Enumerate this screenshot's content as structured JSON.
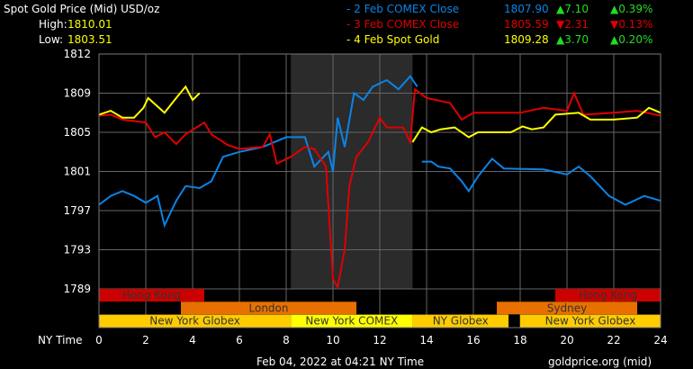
{
  "header": {
    "title": "Spot Gold Price (Mid) USD/oz",
    "high_label": "High:",
    "high": "1810.01",
    "low_label": "Low:",
    "low": "1803.51"
  },
  "legend": [
    {
      "label": "- 2 Feb COMEX Close",
      "price": "1807.90",
      "change": "▲7.10",
      "pct": "▲0.39%",
      "color": "#0a84e8",
      "chg_color": "#22dd22"
    },
    {
      "label": "- 3 Feb COMEX Close",
      "price": "1805.59",
      "change": "▼2.31",
      "pct": "▼0.13%",
      "color": "#e00000",
      "chg_color": "#e00000"
    },
    {
      "label": "- 4 Feb Spot Gold",
      "price": "1809.28",
      "change": "▲3.70",
      "pct": "▲0.20%",
      "color": "#ffff00",
      "chg_color": "#22dd22"
    }
  ],
  "footer": {
    "timestamp": "Feb 04, 2022 at 04:21 NY Time",
    "source": "goldprice.org (mid)"
  },
  "chart_data": {
    "type": "line",
    "xlabel": "NY Time",
    "xlim": [
      0,
      24
    ],
    "xticks": [
      "0",
      "2",
      "4",
      "6",
      "8",
      "10",
      "12",
      "14",
      "16",
      "18",
      "20",
      "22",
      "24"
    ],
    "yticks": [
      "1812",
      "1809",
      "1805",
      "1801",
      "1797",
      "1793",
      "1789"
    ],
    "ylim": [
      1789,
      1812
    ],
    "grid": true,
    "highlight_hours": [
      8.2,
      13.4
    ],
    "sessions": [
      {
        "name": "Hong Kong",
        "start": 0,
        "end": 4.5,
        "row": 0,
        "color": "#cc0000"
      },
      {
        "name": "Hong Kong",
        "start": 19.5,
        "end": 24,
        "row": 0,
        "color": "#cc0000"
      },
      {
        "name": "London",
        "start": 3.5,
        "end": 11,
        "row": 1,
        "color": "#e87000"
      },
      {
        "name": "Sydney",
        "start": 17,
        "end": 23,
        "row": 1,
        "color": "#e87000"
      },
      {
        "name": "New York Globex",
        "start": 0,
        "end": 8.2,
        "row": 2,
        "color": "#ffcc00"
      },
      {
        "name": "New York COMEX",
        "start": 8.2,
        "end": 13.4,
        "row": 2,
        "color": "#ffff00"
      },
      {
        "name": "NY Globex",
        "start": 13.4,
        "end": 17.5,
        "row": 2,
        "color": "#ffcc00"
      },
      {
        "name": "New York Globex",
        "start": 18,
        "end": 24,
        "row": 2,
        "color": "#ffcc00"
      }
    ],
    "series": [
      {
        "color": "#0a84e8",
        "segments": [
          [
            [
              0,
              1797.6
            ],
            [
              0.5,
              1798.5
            ],
            [
              1,
              1799
            ],
            [
              1.5,
              1798.5
            ],
            [
              2,
              1797.8
            ],
            [
              2.5,
              1798.5
            ],
            [
              2.8,
              1795.5
            ],
            [
              3.3,
              1798
            ],
            [
              3.7,
              1799.5
            ],
            [
              4.3,
              1799.3
            ],
            [
              4.8,
              1800
            ],
            [
              5.3,
              1802.5
            ],
            [
              6,
              1803
            ],
            [
              7,
              1803.5
            ],
            [
              8,
              1804.5
            ],
            [
              8.8,
              1804.5
            ],
            [
              9.2,
              1801.5
            ],
            [
              9.8,
              1803
            ],
            [
              10,
              1801
            ],
            [
              10.2,
              1806.5
            ],
            [
              10.5,
              1803.5
            ],
            [
              10.9,
              1809
            ],
            [
              11.3,
              1808.3
            ],
            [
              11.7,
              1809.5
            ],
            [
              12.3,
              1810
            ],
            [
              12.8,
              1809.3
            ],
            [
              13.3,
              1810.3
            ],
            [
              13.6,
              1809.5
            ]
          ],
          [
            [
              13.8,
              1802
            ],
            [
              14.2,
              1802
            ],
            [
              14.5,
              1801.5
            ],
            [
              15,
              1801.3
            ],
            [
              15.5,
              1800
            ],
            [
              15.8,
              1799
            ],
            [
              16.2,
              1800.5
            ],
            [
              16.8,
              1802.3
            ],
            [
              17.3,
              1801.3
            ],
            [
              19,
              1801.2
            ],
            [
              20,
              1800.7
            ],
            [
              20.5,
              1801.5
            ],
            [
              21,
              1800.5
            ],
            [
              21.8,
              1798.5
            ],
            [
              22.5,
              1797.6
            ],
            [
              23.3,
              1798.5
            ],
            [
              24,
              1798
            ]
          ]
        ]
      },
      {
        "color": "#e00000",
        "segments": [
          [
            [
              0,
              1806.7
            ],
            [
              0.5,
              1806.8
            ],
            [
              1,
              1806.3
            ],
            [
              2,
              1806
            ],
            [
              2.4,
              1804.5
            ],
            [
              2.8,
              1805
            ],
            [
              3.3,
              1803.8
            ],
            [
              3.7,
              1804.8
            ],
            [
              4.5,
              1806
            ],
            [
              4.8,
              1804.8
            ],
            [
              5.5,
              1803.7
            ],
            [
              6,
              1803.3
            ],
            [
              7,
              1803.5
            ],
            [
              7.3,
              1804.8
            ],
            [
              7.6,
              1801.8
            ],
            [
              8.2,
              1802.5
            ],
            [
              8.8,
              1803.5
            ],
            [
              9.2,
              1803.3
            ],
            [
              9.7,
              1801.5
            ],
            [
              10,
              1790
            ],
            [
              10.2,
              1789.2
            ],
            [
              10.5,
              1793
            ],
            [
              10.7,
              1799.5
            ],
            [
              11,
              1802.5
            ],
            [
              11.5,
              1804
            ],
            [
              12,
              1806.5
            ],
            [
              12.3,
              1805.5
            ],
            [
              13,
              1805.5
            ],
            [
              13.3,
              1804
            ],
            [
              13.5,
              1809.3
            ],
            [
              14,
              1808.5
            ],
            [
              15,
              1808
            ],
            [
              15.5,
              1806.3
            ],
            [
              16,
              1807
            ],
            [
              17,
              1807
            ],
            [
              18,
              1807
            ],
            [
              19,
              1807.5
            ],
            [
              20,
              1807.2
            ],
            [
              20.3,
              1809
            ],
            [
              20.7,
              1806.8
            ],
            [
              22,
              1807
            ],
            [
              23,
              1807.2
            ],
            [
              24,
              1806.7
            ]
          ]
        ]
      },
      {
        "color": "#ffff00",
        "segments": [
          [
            [
              0,
              1806.8
            ],
            [
              0.5,
              1807.2
            ],
            [
              1,
              1806.5
            ],
            [
              1.5,
              1806.5
            ],
            [
              1.9,
              1807.5
            ],
            [
              2.1,
              1808.5
            ],
            [
              2.8,
              1807
            ],
            [
              3.3,
              1808.5
            ],
            [
              3.7,
              1809.5
            ],
            [
              4,
              1808.3
            ],
            [
              4.3,
              1809
            ]
          ],
          [
            [
              13.4,
              1804
            ],
            [
              13.8,
              1805.5
            ],
            [
              14.2,
              1805
            ],
            [
              14.6,
              1805.3
            ],
            [
              15.2,
              1805.5
            ],
            [
              15.8,
              1804.5
            ],
            [
              16.2,
              1805
            ],
            [
              17,
              1805
            ],
            [
              17.6,
              1805
            ],
            [
              18.1,
              1805.6
            ],
            [
              18.5,
              1805.3
            ],
            [
              19,
              1805.5
            ],
            [
              19.5,
              1806.8
            ],
            [
              20.5,
              1807
            ],
            [
              21,
              1806.3
            ],
            [
              22,
              1806.3
            ],
            [
              23,
              1806.5
            ],
            [
              23.5,
              1807.5
            ],
            [
              24,
              1807
            ]
          ]
        ]
      }
    ]
  }
}
